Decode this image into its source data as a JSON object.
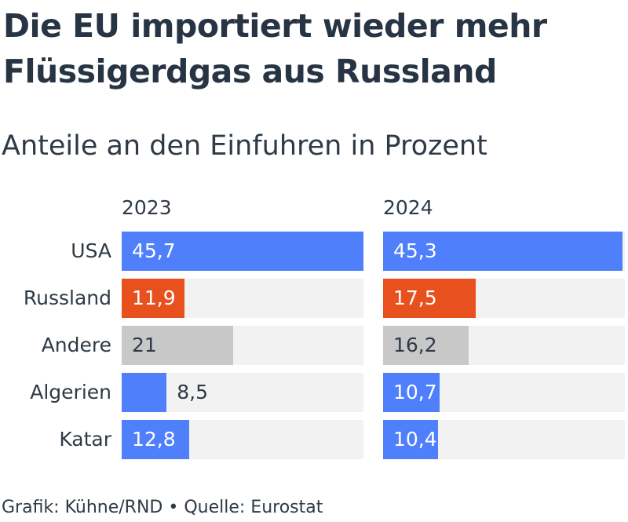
{
  "title": "Die EU importiert wieder mehr Flüssigerdgas aus Russland",
  "subtitle": "Anteile an den Einfuhren in Prozent",
  "footer": "Grafik: Kühne/RND • Quelle: Eurostat",
  "colors": {
    "usa": "#4f7ffb",
    "russland": "#e8501e",
    "andere": "#c8c8c8",
    "algerien": "#4f7ffb",
    "katar": "#4f7ffb",
    "track": "#f2f2f2"
  },
  "chart_data": {
    "type": "bar",
    "title": "Die EU importiert wieder mehr Flüssigerdgas aus Russland",
    "subtitle": "Anteile an den Einfuhren in Prozent",
    "categories": [
      "USA",
      "Russland",
      "Andere",
      "Algerien",
      "Katar"
    ],
    "series": [
      {
        "name": "2023",
        "values": [
          45.7,
          11.9,
          21,
          8.5,
          12.8
        ],
        "labels": [
          "45,7",
          "11,9",
          "21",
          "8,5",
          "12,8"
        ]
      },
      {
        "name": "2024",
        "values": [
          45.3,
          17.5,
          16.2,
          10.7,
          10.4
        ],
        "labels": [
          "45,3",
          "17,5",
          "16,2",
          "10,7",
          "10,4"
        ]
      }
    ],
    "xlim": [
      0,
      45.7
    ],
    "grid": false,
    "legend": "none"
  }
}
